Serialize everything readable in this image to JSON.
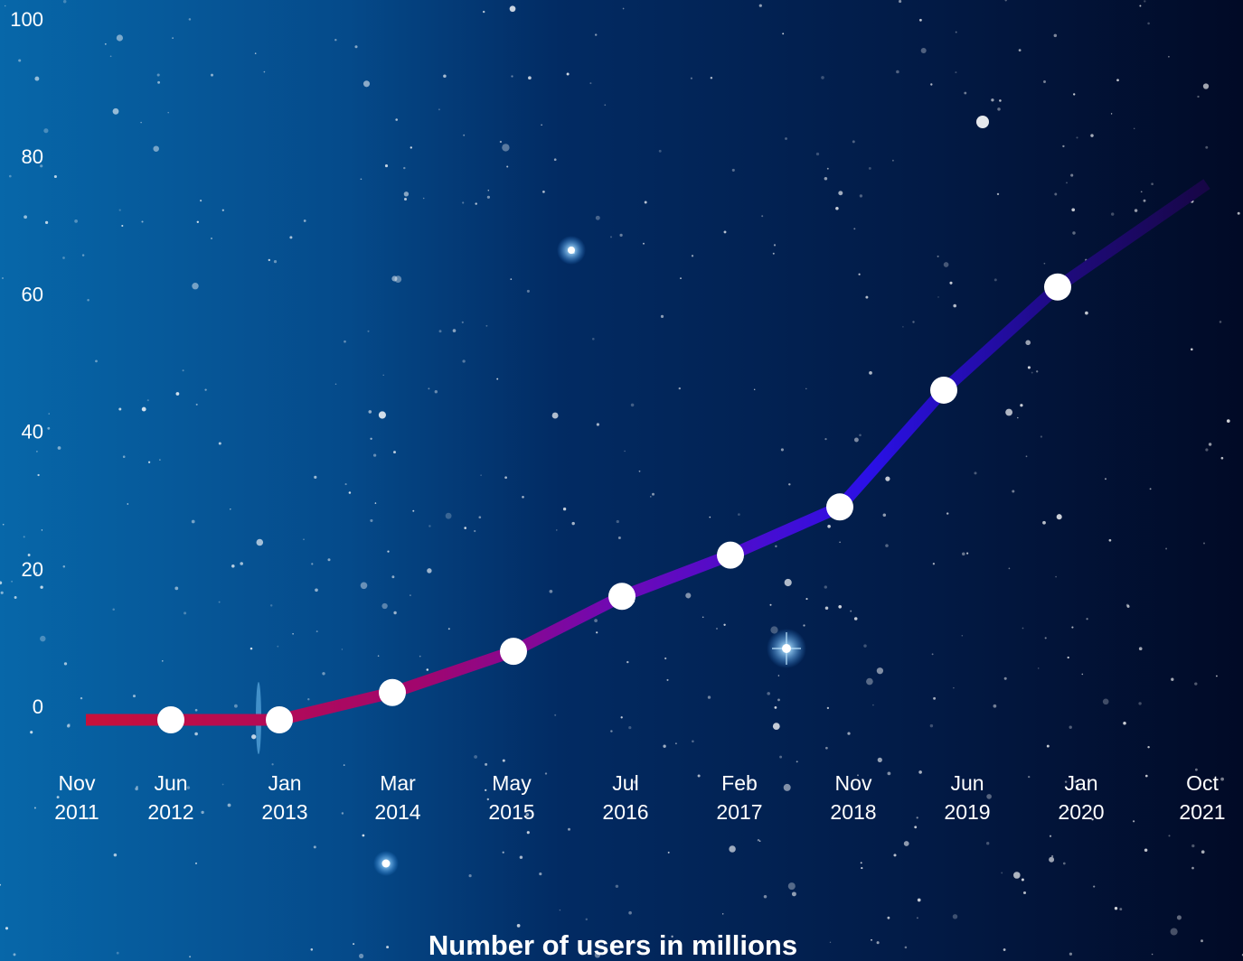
{
  "chart_data": {
    "type": "line",
    "title": "Number of users in millions",
    "ylim": [
      0,
      100
    ],
    "y_ticks": [
      0,
      20,
      40,
      60,
      80,
      100
    ],
    "x_tick_labels": [
      {
        "month": "Nov",
        "year": "2011"
      },
      {
        "month": "Jun",
        "year": "2012"
      },
      {
        "month": "Jan",
        "year": "2013"
      },
      {
        "month": "Mar",
        "year": "2014"
      },
      {
        "month": "May",
        "year": "2015"
      },
      {
        "month": "Jul",
        "year": "2016"
      },
      {
        "month": "Feb",
        "year": "2017"
      },
      {
        "month": "Nov",
        "year": "2018"
      },
      {
        "month": "Jun",
        "year": "2019"
      },
      {
        "month": "Jan",
        "year": "2020"
      },
      {
        "month": "Oct",
        "year": "2021"
      }
    ],
    "series": [
      {
        "points": [
          {
            "x": "2011-11",
            "y": 0
          },
          {
            "x": "2012-06",
            "y": 0
          },
          {
            "x": "2013-01",
            "y": 0
          },
          {
            "x": "2014-03",
            "y": 2
          },
          {
            "x": "2015-05",
            "y": 8
          },
          {
            "x": "2016-07",
            "y": 16
          },
          {
            "x": "2017-02",
            "y": 22
          },
          {
            "x": "2018-11",
            "y": 29
          },
          {
            "x": "2019-06",
            "y": 46
          },
          {
            "x": "2020-01",
            "y": 61
          },
          {
            "x": "2021-10",
            "y": 76
          }
        ],
        "markers": [
          false,
          true,
          true,
          true,
          true,
          true,
          true,
          true,
          true,
          true,
          false
        ]
      }
    ],
    "grid": false,
    "line_colors": [
      "#c8103a",
      "#a1066e",
      "#6d09b7",
      "#2a10e6",
      "#1e0a7a",
      "#170646"
    ],
    "marker_color": "#ffffff",
    "background_colors": [
      "#0767a9",
      "#054a8a",
      "#022b63",
      "#021a45",
      "#010a26"
    ]
  }
}
